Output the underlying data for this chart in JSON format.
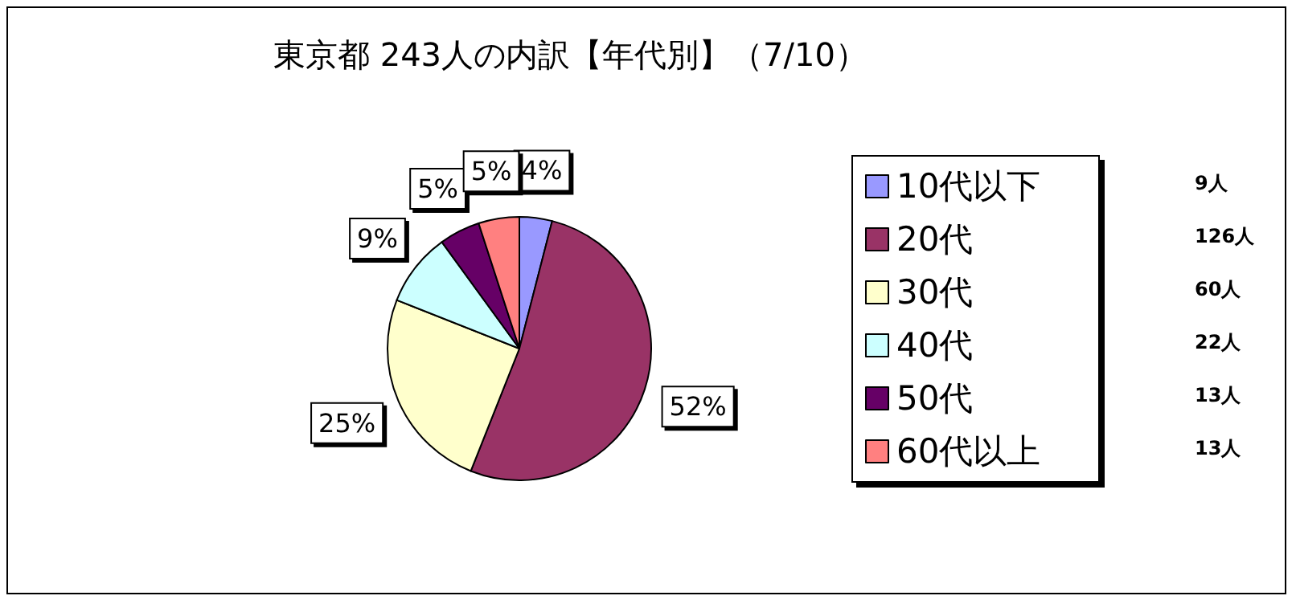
{
  "chart_data": {
    "type": "pie",
    "title": "東京都 243人の内訳【年代別】（7/10）",
    "categories": [
      "10代以下",
      "20代",
      "30代",
      "40代",
      "50代",
      "60代以上"
    ],
    "values": [
      4,
      52,
      25,
      9,
      5,
      5
    ],
    "value_labels": [
      "4%",
      "52%",
      "25%",
      "9%",
      "5%",
      "5%"
    ],
    "colors": [
      "#9999ff",
      "#993366",
      "#ffffcc",
      "#ccffff",
      "#660066",
      "#ff8080"
    ],
    "annotations": [
      "9人",
      "126人",
      "60人",
      "22人",
      "13人",
      "13人"
    ],
    "legend": "right"
  }
}
